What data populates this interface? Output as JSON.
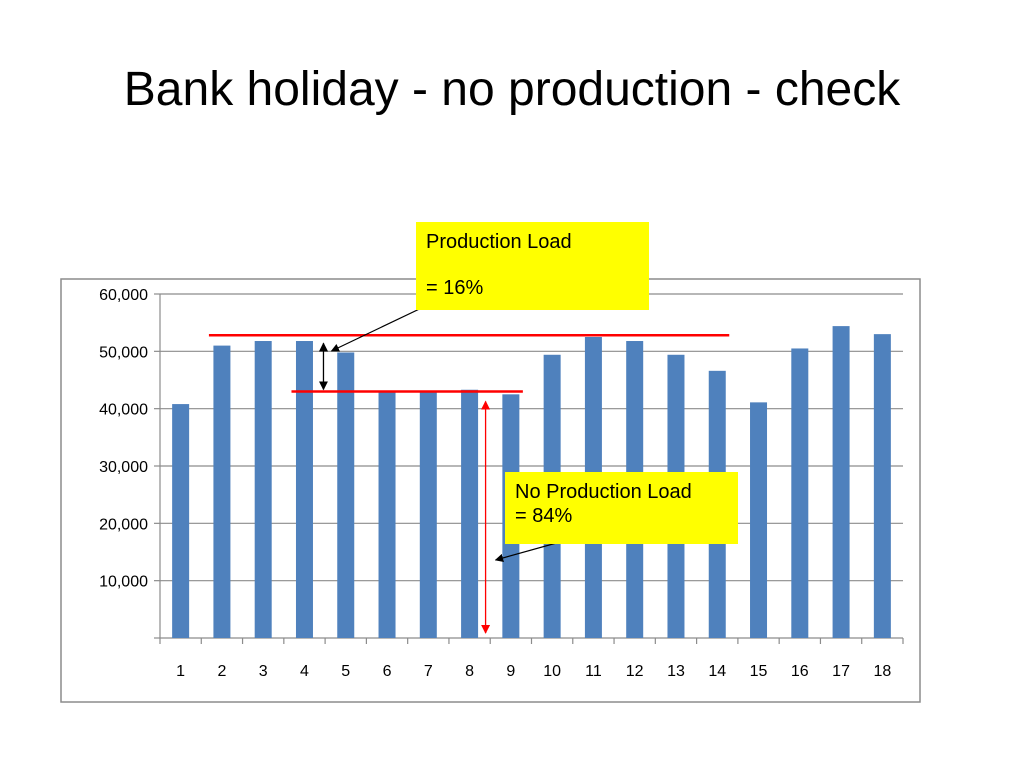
{
  "slide": {
    "title": "Bank holiday - no production - check"
  },
  "colors": {
    "bar": "#4f81bd",
    "grid": "#8c8c8c",
    "marker": "#ff0000",
    "callout_bg": "#ffff00",
    "frame": "#8c8c8c"
  },
  "callouts": {
    "production": {
      "line1": "Production Load",
      "line2": "= 16%"
    },
    "no_production": {
      "line1": "No Production Load",
      "line2": "= 84%"
    }
  },
  "chart_data": {
    "type": "bar",
    "categories": [
      "1",
      "2",
      "3",
      "4",
      "5",
      "6",
      "7",
      "8",
      "9",
      "10",
      "11",
      "12",
      "13",
      "14",
      "15",
      "16",
      "17",
      "18"
    ],
    "values": [
      40800,
      51000,
      51800,
      51800,
      49800,
      43000,
      43000,
      43300,
      42500,
      49400,
      52500,
      51800,
      49400,
      46600,
      41100,
      50500,
      54400,
      53000
    ],
    "ylim": [
      0,
      60000
    ],
    "yticks": [
      0,
      10000,
      20000,
      30000,
      40000,
      50000,
      60000
    ],
    "ytick_labels": [
      "",
      "10,000",
      "20,000",
      "30,000",
      "40,000",
      "50,000",
      "60,000"
    ],
    "grid": true,
    "legend": "none",
    "reference_lines": [
      {
        "name": "production-level",
        "value": 52800,
        "from_category": "2",
        "to_category": "14"
      },
      {
        "name": "no-production-level",
        "value": 43000,
        "from_category": "4",
        "to_category": "9"
      }
    ]
  }
}
